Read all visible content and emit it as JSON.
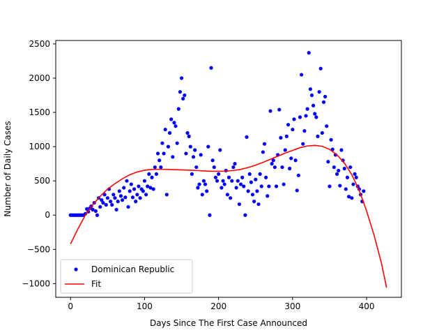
{
  "chart_data": {
    "type": "scatter",
    "xlabel": "Days Since The First Case Announced",
    "ylabel": "Number of Daily Cases",
    "xlim": [
      -20,
      447
    ],
    "ylim": [
      -1200,
      2550
    ],
    "xticks": [
      0,
      100,
      200,
      300,
      400
    ],
    "yticks": [
      -1000,
      -500,
      0,
      500,
      1000,
      1500,
      2000,
      2500
    ],
    "legend": {
      "position": "lower-left",
      "entries": [
        {
          "label": "Dominican Republic",
          "marker": "point",
          "color": "#0000ff"
        },
        {
          "label": "Fit",
          "marker": "line",
          "color": "#ff0000"
        }
      ]
    },
    "series": [
      {
        "name": "Dominican Republic",
        "kind": "scatter",
        "color": "#0000ff",
        "points": [
          [
            0,
            0
          ],
          [
            2,
            0
          ],
          [
            4,
            0
          ],
          [
            6,
            0
          ],
          [
            8,
            0
          ],
          [
            10,
            0
          ],
          [
            12,
            0
          ],
          [
            14,
            0
          ],
          [
            16,
            0
          ],
          [
            18,
            0
          ],
          [
            20,
            20
          ],
          [
            22,
            90
          ],
          [
            24,
            50
          ],
          [
            26,
            100
          ],
          [
            28,
            130
          ],
          [
            30,
            80
          ],
          [
            32,
            180
          ],
          [
            34,
            60
          ],
          [
            36,
            0
          ],
          [
            38,
            250
          ],
          [
            40,
            120
          ],
          [
            42,
            220
          ],
          [
            44,
            180
          ],
          [
            46,
            300
          ],
          [
            48,
            150
          ],
          [
            50,
            250
          ],
          [
            52,
            380
          ],
          [
            54,
            200
          ],
          [
            56,
            150
          ],
          [
            58,
            300
          ],
          [
            60,
            250
          ],
          [
            62,
            80
          ],
          [
            64,
            200
          ],
          [
            66,
            350
          ],
          [
            68,
            280
          ],
          [
            70,
            220
          ],
          [
            72,
            400
          ],
          [
            74,
            260
          ],
          [
            76,
            500
          ],
          [
            78,
            120
          ],
          [
            80,
            350
          ],
          [
            82,
            450
          ],
          [
            84,
            260
          ],
          [
            86,
            380
          ],
          [
            88,
            200
          ],
          [
            90,
            300
          ],
          [
            92,
            420
          ],
          [
            94,
            250
          ],
          [
            96,
            380
          ],
          [
            98,
            350
          ],
          [
            100,
            500
          ],
          [
            102,
            300
          ],
          [
            104,
            420
          ],
          [
            106,
            600
          ],
          [
            108,
            400
          ],
          [
            110,
            550
          ],
          [
            112,
            380
          ],
          [
            114,
            700
          ],
          [
            116,
            600
          ],
          [
            118,
            900
          ],
          [
            120,
            800
          ],
          [
            122,
            700
          ],
          [
            124,
            1050
          ],
          [
            126,
            900
          ],
          [
            128,
            1250
          ],
          [
            130,
            300
          ],
          [
            132,
            1000
          ],
          [
            134,
            1200
          ],
          [
            136,
            1400
          ],
          [
            138,
            850
          ],
          [
            140,
            1350
          ],
          [
            142,
            1300
          ],
          [
            144,
            1050
          ],
          [
            146,
            1550
          ],
          [
            148,
            1800
          ],
          [
            150,
            2000
          ],
          [
            152,
            1700
          ],
          [
            154,
            1750
          ],
          [
            156,
            900
          ],
          [
            158,
            1200
          ],
          [
            160,
            1150
          ],
          [
            162,
            1000
          ],
          [
            164,
            600
          ],
          [
            166,
            850
          ],
          [
            168,
            950
          ],
          [
            170,
            700
          ],
          [
            172,
            400
          ],
          [
            174,
            450
          ],
          [
            176,
            880
          ],
          [
            178,
            300
          ],
          [
            180,
            500
          ],
          [
            182,
            450
          ],
          [
            184,
            350
          ],
          [
            186,
            1000
          ],
          [
            188,
            0
          ],
          [
            190,
            2150
          ],
          [
            192,
            800
          ],
          [
            194,
            700
          ],
          [
            196,
            550
          ],
          [
            198,
            500
          ],
          [
            200,
            600
          ],
          [
            202,
            950
          ],
          [
            204,
            400
          ],
          [
            206,
            500
          ],
          [
            208,
            450
          ],
          [
            210,
            650
          ],
          [
            212,
            300
          ],
          [
            214,
            550
          ],
          [
            216,
            250
          ],
          [
            218,
            500
          ],
          [
            220,
            700
          ],
          [
            222,
            750
          ],
          [
            224,
            400
          ],
          [
            226,
            500
          ],
          [
            228,
            160
          ],
          [
            230,
            450
          ],
          [
            232,
            550
          ],
          [
            234,
            420
          ],
          [
            236,
            0
          ],
          [
            238,
            1140
          ],
          [
            240,
            350
          ],
          [
            242,
            600
          ],
          [
            244,
            480
          ],
          [
            246,
            300
          ],
          [
            248,
            200
          ],
          [
            250,
            520
          ],
          [
            252,
            350
          ],
          [
            254,
            160
          ],
          [
            256,
            600
          ],
          [
            258,
            420
          ],
          [
            260,
            920
          ],
          [
            262,
            1040
          ],
          [
            264,
            550
          ],
          [
            266,
            280
          ],
          [
            268,
            420
          ],
          [
            270,
            1520
          ],
          [
            272,
            750
          ],
          [
            274,
            800
          ],
          [
            276,
            700
          ],
          [
            278,
            420
          ],
          [
            280,
            880
          ],
          [
            282,
            1540
          ],
          [
            284,
            1130
          ],
          [
            286,
            700
          ],
          [
            288,
            450
          ],
          [
            290,
            950
          ],
          [
            292,
            1150
          ],
          [
            294,
            1320
          ],
          [
            296,
            680
          ],
          [
            298,
            830
          ],
          [
            300,
            1250
          ],
          [
            302,
            1400
          ],
          [
            304,
            800
          ],
          [
            306,
            360
          ],
          [
            308,
            580
          ],
          [
            310,
            1430
          ],
          [
            312,
            2050
          ],
          [
            314,
            1040
          ],
          [
            316,
            1230
          ],
          [
            318,
            1450
          ],
          [
            320,
            1550
          ],
          [
            322,
            2370
          ],
          [
            324,
            1840
          ],
          [
            326,
            1750
          ],
          [
            328,
            1600
          ],
          [
            330,
            1480
          ],
          [
            332,
            1430
          ],
          [
            334,
            1150
          ],
          [
            336,
            1800
          ],
          [
            338,
            2140
          ],
          [
            340,
            1200
          ],
          [
            342,
            1650
          ],
          [
            344,
            1730
          ],
          [
            346,
            1300
          ],
          [
            348,
            780
          ],
          [
            350,
            420
          ],
          [
            352,
            1100
          ],
          [
            354,
            960
          ],
          [
            356,
            700
          ],
          [
            358,
            880
          ],
          [
            360,
            600
          ],
          [
            362,
            650
          ],
          [
            364,
            430
          ],
          [
            366,
            950
          ],
          [
            368,
            800
          ],
          [
            370,
            680
          ],
          [
            372,
            380
          ],
          [
            374,
            550
          ],
          [
            376,
            270
          ],
          [
            378,
            700
          ],
          [
            380,
            250
          ],
          [
            382,
            450
          ],
          [
            384,
            600
          ],
          [
            386,
            550
          ],
          [
            388,
            420
          ],
          [
            390,
            380
          ],
          [
            392,
            300
          ],
          [
            394,
            200
          ],
          [
            396,
            350
          ]
        ]
      },
      {
        "name": "Fit",
        "kind": "line",
        "color": "#ff0000",
        "points": [
          [
            0,
            -420
          ],
          [
            10,
            -200
          ],
          [
            20,
            0
          ],
          [
            30,
            150
          ],
          [
            40,
            275
          ],
          [
            50,
            380
          ],
          [
            60,
            460
          ],
          [
            70,
            530
          ],
          [
            80,
            590
          ],
          [
            90,
            630
          ],
          [
            100,
            655
          ],
          [
            110,
            668
          ],
          [
            120,
            670
          ],
          [
            130,
            668
          ],
          [
            140,
            664
          ],
          [
            150,
            660
          ],
          [
            160,
            656
          ],
          [
            170,
            652
          ],
          [
            180,
            645
          ],
          [
            190,
            640
          ],
          [
            200,
            640
          ],
          [
            210,
            642
          ],
          [
            220,
            652
          ],
          [
            230,
            668
          ],
          [
            240,
            695
          ],
          [
            250,
            730
          ],
          [
            260,
            770
          ],
          [
            270,
            815
          ],
          [
            280,
            860
          ],
          [
            290,
            905
          ],
          [
            300,
            945
          ],
          [
            310,
            985
          ],
          [
            320,
            1010
          ],
          [
            330,
            1018
          ],
          [
            340,
            1005
          ],
          [
            350,
            960
          ],
          [
            360,
            880
          ],
          [
            370,
            760
          ],
          [
            380,
            590
          ],
          [
            390,
            360
          ],
          [
            400,
            60
          ],
          [
            410,
            -290
          ],
          [
            420,
            -700
          ],
          [
            427,
            -1060
          ]
        ]
      }
    ]
  }
}
